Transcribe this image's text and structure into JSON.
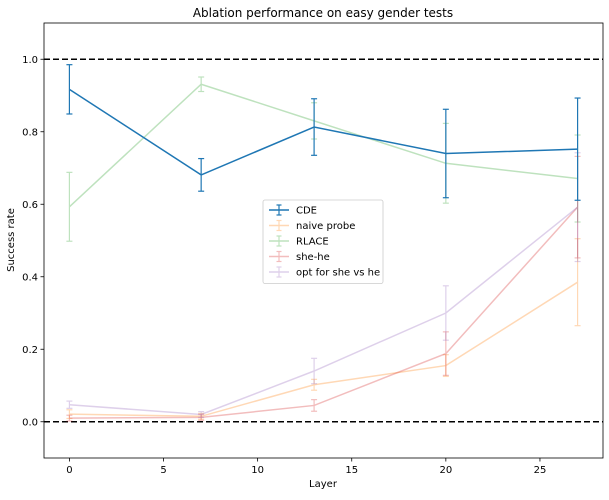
{
  "chart_data": {
    "type": "line",
    "title": "Ablation performance on easy gender tests",
    "xlabel": "Layer",
    "ylabel": "Success rate",
    "xlim": [
      -1.35,
      28.35
    ],
    "ylim": [
      -0.1,
      1.1
    ],
    "xticks": [
      0,
      5,
      10,
      15,
      20,
      25
    ],
    "yticks": [
      0.0,
      0.2,
      0.4,
      0.6,
      0.8,
      1.0
    ],
    "xtick_labels": [
      "0",
      "5",
      "10",
      "15",
      "20",
      "25"
    ],
    "ytick_labels": [
      "0.0",
      "0.2",
      "0.4",
      "0.6",
      "0.8",
      "1.0"
    ],
    "hlines": [
      0.0,
      1.0
    ],
    "legend_position": "center",
    "x": [
      0,
      7,
      13,
      20,
      27
    ],
    "series": [
      {
        "name": "CDE",
        "color": "#1f77b4",
        "alpha": 1.0,
        "values": [
          0.917,
          0.681,
          0.813,
          0.74,
          0.752
        ],
        "errors": [
          0.068,
          0.045,
          0.078,
          0.122,
          0.141
        ]
      },
      {
        "name": "naive probe",
        "color": "#ff7f0e",
        "alpha": 0.3,
        "values": [
          0.021,
          0.015,
          0.102,
          0.155,
          0.385
        ],
        "errors": [
          0.012,
          0.008,
          0.015,
          0.03,
          0.12
        ]
      },
      {
        "name": "RLACE",
        "color": "#2ca02c",
        "alpha": 0.3,
        "values": [
          0.593,
          0.931,
          0.83,
          0.713,
          0.671
        ],
        "errors": [
          0.095,
          0.02,
          0.05,
          0.11,
          0.12
        ]
      },
      {
        "name": "she-he",
        "color": "#d62728",
        "alpha": 0.3,
        "values": [
          0.01,
          0.012,
          0.045,
          0.188,
          0.592
        ],
        "errors": [
          0.008,
          0.008,
          0.016,
          0.06,
          0.14
        ]
      },
      {
        "name": "opt for she vs he",
        "color": "#9467bd",
        "alpha": 0.3,
        "values": [
          0.047,
          0.02,
          0.14,
          0.3,
          0.592
        ],
        "errors": [
          0.01,
          0.008,
          0.035,
          0.075,
          0.15
        ]
      }
    ]
  }
}
